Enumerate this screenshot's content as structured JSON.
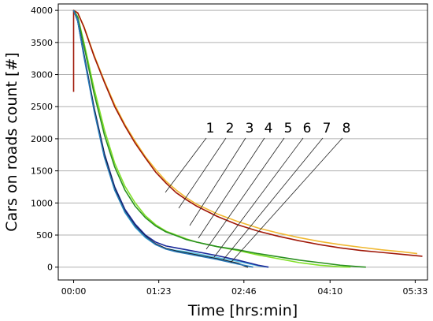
{
  "chart_data": {
    "type": "line",
    "xlabel": "Time [hrs:min]",
    "ylabel": "Cars on roads count [#]",
    "x_unit": "minutes",
    "xlim": [
      -15,
      345
    ],
    "ylim": [
      -200,
      4100
    ],
    "grid": "horizontal",
    "x_ticks": [
      {
        "value": 0,
        "label": "00:00"
      },
      {
        "value": 83,
        "label": "01:23"
      },
      {
        "value": 166,
        "label": "02:46"
      },
      {
        "value": 250,
        "label": "04:10"
      },
      {
        "value": 333,
        "label": "05:33"
      }
    ],
    "y_ticks": [
      0,
      500,
      1000,
      1500,
      2000,
      2500,
      3000,
      3500,
      4000
    ],
    "callout_labels": [
      "1",
      "2",
      "3",
      "4",
      "5",
      "6",
      "7",
      "8"
    ],
    "series": [
      {
        "color": "#f0b830",
        "x": [
          0,
          4,
          10,
          20,
          30,
          40,
          50,
          60,
          70,
          80,
          90,
          100,
          110,
          120,
          140,
          160,
          180,
          200,
          220,
          240,
          260,
          280,
          300,
          320,
          335
        ],
        "y": [
          4000,
          3960,
          3750,
          3300,
          2900,
          2530,
          2220,
          1960,
          1720,
          1520,
          1340,
          1200,
          1080,
          980,
          830,
          710,
          610,
          530,
          460,
          400,
          350,
          310,
          270,
          240,
          210
        ]
      },
      {
        "color": "#a01808",
        "x": [
          0,
          0,
          4,
          10,
          20,
          30,
          40,
          50,
          60,
          70,
          80,
          90,
          100,
          110,
          120,
          140,
          160,
          180,
          200,
          220,
          240,
          260,
          280,
          300,
          320,
          340
        ],
        "y": [
          2730,
          4000,
          3960,
          3740,
          3280,
          2880,
          2500,
          2200,
          1930,
          1700,
          1480,
          1310,
          1160,
          1050,
          950,
          790,
          660,
          560,
          480,
          410,
          350,
          300,
          260,
          230,
          200,
          170
        ]
      },
      {
        "color": "#80e028",
        "x": [
          0,
          4,
          10,
          20,
          30,
          40,
          50,
          60,
          70,
          80,
          90,
          100,
          110,
          120,
          140,
          160,
          180,
          200,
          220,
          240,
          260,
          270
        ],
        "y": [
          4000,
          3900,
          3500,
          2780,
          2140,
          1620,
          1260,
          1000,
          800,
          660,
          560,
          500,
          440,
          390,
          320,
          260,
          190,
          130,
          70,
          30,
          5,
          0
        ]
      },
      {
        "color": "#2a9020",
        "x": [
          0,
          4,
          10,
          20,
          30,
          40,
          50,
          60,
          70,
          80,
          90,
          100,
          110,
          120,
          140,
          160,
          180,
          200,
          220,
          240,
          260,
          280,
          285
        ],
        "y": [
          4000,
          3890,
          3450,
          2700,
          2060,
          1560,
          1200,
          950,
          770,
          640,
          550,
          490,
          430,
          390,
          320,
          270,
          210,
          160,
          110,
          70,
          30,
          5,
          0
        ]
      },
      {
        "color": "#58c0e0",
        "x": [
          0,
          4,
          10,
          20,
          30,
          40,
          50,
          60,
          70,
          80,
          90,
          100,
          110,
          120,
          140,
          160,
          180,
          190
        ],
        "y": [
          4000,
          3850,
          3300,
          2450,
          1720,
          1200,
          850,
          620,
          460,
          350,
          290,
          260,
          240,
          210,
          150,
          90,
          20,
          0
        ]
      },
      {
        "color": "#1a2a9a",
        "x": [
          0,
          4,
          10,
          20,
          30,
          40,
          50,
          60,
          70,
          80,
          90,
          100,
          110,
          120,
          140,
          160,
          180,
          190
        ],
        "y": [
          4000,
          3840,
          3320,
          2480,
          1770,
          1250,
          900,
          670,
          500,
          390,
          330,
          300,
          270,
          240,
          180,
          110,
          30,
          0
        ]
      },
      {
        "color": "#111111",
        "x": [
          0,
          4,
          10,
          20,
          30,
          40,
          50,
          60,
          70,
          80,
          90,
          100,
          110,
          120,
          140,
          160,
          170
        ],
        "y": [
          4000,
          3830,
          3300,
          2460,
          1740,
          1220,
          870,
          640,
          480,
          360,
          290,
          250,
          220,
          190,
          130,
          60,
          0
        ]
      },
      {
        "color": "#2878b8",
        "x": [
          0,
          4,
          10,
          20,
          30,
          40,
          50,
          60,
          70,
          80,
          90,
          100,
          110,
          120,
          140,
          160,
          175
        ],
        "y": [
          4000,
          3830,
          3280,
          2430,
          1710,
          1200,
          860,
          630,
          470,
          350,
          280,
          240,
          210,
          180,
          120,
          50,
          0
        ]
      }
    ]
  }
}
